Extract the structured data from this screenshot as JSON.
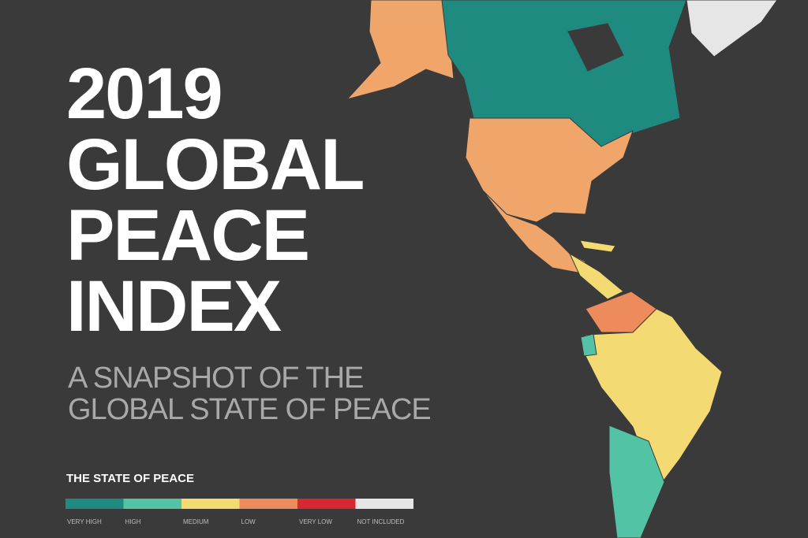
{
  "header": {
    "title_lines": [
      "2019",
      "GLOBAL",
      "PEACE",
      "INDEX"
    ],
    "subtitle_lines": [
      "A SNAPSHOT OF THE",
      "GLOBAL STATE OF PEACE"
    ]
  },
  "legend": {
    "title": "THE STATE OF PEACE",
    "items": [
      {
        "label": "VERY HIGH",
        "color": "#1f8a80"
      },
      {
        "label": "HIGH",
        "color": "#53c3a5"
      },
      {
        "label": "MEDIUM",
        "color": "#f3da72"
      },
      {
        "label": "LOW",
        "color": "#ee8b5c"
      },
      {
        "label": "VERY LOW",
        "color": "#d7282f"
      },
      {
        "label": "NOT INCLUDED",
        "color": "#e6e6e6"
      }
    ]
  }
}
